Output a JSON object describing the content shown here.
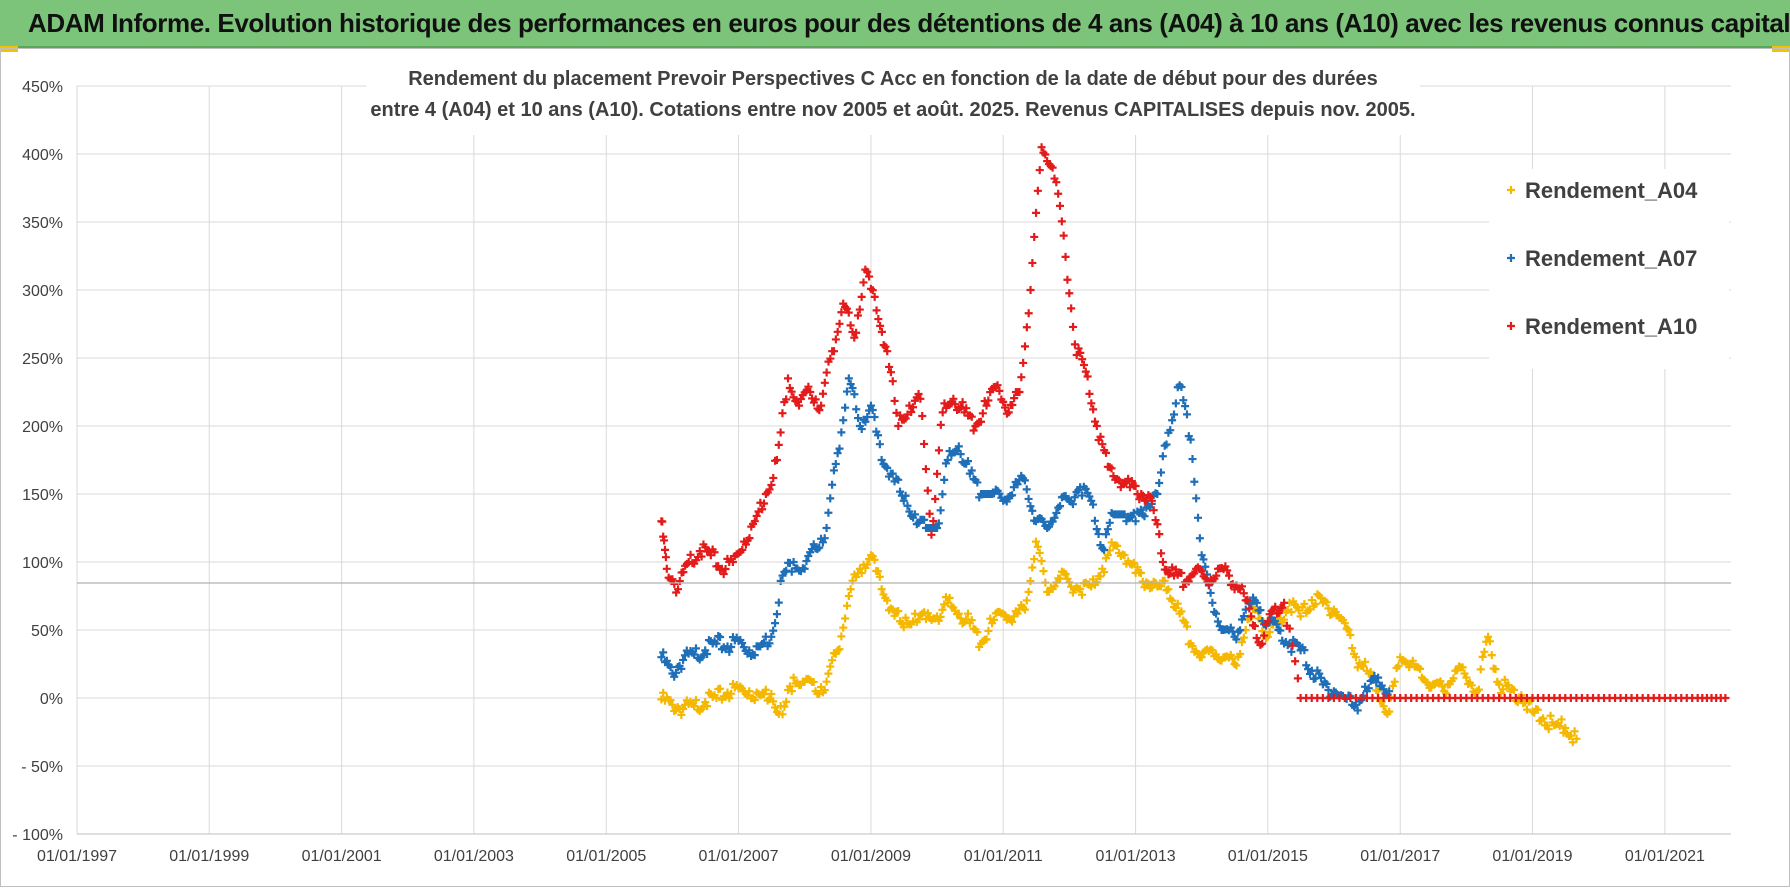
{
  "banner": {
    "title": "ADAM Informe. Evolution historique des performances en euros pour des détentions de 4 ans (A04) à 10 ans (A10) avec les revenus connus capitalisés"
  },
  "chart_data": {
    "type": "scatter",
    "title_line1": "Rendement du placement Prevoir Perspectives C Acc en fonction de la date de début pour des durées",
    "title_line2": "entre 4 (A04) et 10 ans (A10). Cotations entre nov 2005 et août. 2025. Revenus CAPITALISES depuis nov. 2005.",
    "x_type": "date",
    "xlim": [
      "1997-01-01",
      "2022-01-01"
    ],
    "x_ticks": [
      "1997-01-01",
      "1999-01-01",
      "2001-01-01",
      "2003-01-01",
      "2005-01-01",
      "2007-01-01",
      "2009-01-01",
      "2011-01-01",
      "2013-01-01",
      "2015-01-01",
      "2017-01-01",
      "2019-01-01",
      "2021-01-01"
    ],
    "x_tick_labels": [
      "01/01/1997",
      "01/01/1999",
      "01/01/2001",
      "01/01/2003",
      "01/01/2005",
      "01/01/2007",
      "01/01/2009",
      "01/01/2011",
      "01/01/2013",
      "01/01/2015",
      "01/01/2017",
      "01/01/2019",
      "01/01/2021"
    ],
    "ylim": [
      -100,
      450
    ],
    "y_ticks": [
      -100,
      -50,
      0,
      50,
      100,
      150,
      200,
      250,
      300,
      350,
      400,
      450
    ],
    "y_tick_labels": [
      "- 100%",
      "- 50%",
      "0%",
      "50%",
      "100%",
      "150%",
      "200%",
      "250%",
      "300%",
      "350%",
      "400%",
      "450%"
    ],
    "y_unit": "%",
    "grid": true,
    "legend_position": "top-right",
    "marker": "+",
    "series": [
      {
        "name": "Rendement_A04",
        "color": "#f5b800",
        "points": [
          [
            "2005-11-01",
            -1
          ],
          [
            "2006-01-01",
            -5
          ],
          [
            "2006-03-01",
            -8
          ],
          [
            "2006-05-01",
            -6
          ],
          [
            "2006-07-01",
            -3
          ],
          [
            "2006-09-01",
            0
          ],
          [
            "2006-11-01",
            4
          ],
          [
            "2007-01-01",
            7
          ],
          [
            "2007-03-01",
            5
          ],
          [
            "2007-05-01",
            2
          ],
          [
            "2007-07-01",
            3
          ],
          [
            "2007-09-01",
            -12
          ],
          [
            "2007-11-01",
            15
          ],
          [
            "2008-01-01",
            12
          ],
          [
            "2008-03-01",
            5
          ],
          [
            "2008-05-01",
            12
          ],
          [
            "2008-07-01",
            35
          ],
          [
            "2008-09-01",
            75
          ],
          [
            "2008-11-01",
            95
          ],
          [
            "2009-01-01",
            105
          ],
          [
            "2009-03-01",
            80
          ],
          [
            "2009-05-01",
            65
          ],
          [
            "2009-07-01",
            52
          ],
          [
            "2009-09-01",
            62
          ],
          [
            "2009-11-01",
            58
          ],
          [
            "2010-01-01",
            60
          ],
          [
            "2010-03-01",
            70
          ],
          [
            "2010-05-01",
            62
          ],
          [
            "2010-07-01",
            55
          ],
          [
            "2010-09-01",
            40
          ],
          [
            "2010-11-01",
            55
          ],
          [
            "2011-01-01",
            62
          ],
          [
            "2011-03-01",
            60
          ],
          [
            "2011-05-01",
            65
          ],
          [
            "2011-07-01",
            115
          ],
          [
            "2011-09-01",
            78
          ],
          [
            "2011-11-01",
            88
          ],
          [
            "2012-01-01",
            85
          ],
          [
            "2012-03-01",
            80
          ],
          [
            "2012-05-01",
            82
          ],
          [
            "2012-07-01",
            95
          ],
          [
            "2012-09-01",
            112
          ],
          [
            "2012-11-01",
            105
          ],
          [
            "2013-01-01",
            92
          ],
          [
            "2013-03-01",
            85
          ],
          [
            "2013-05-01",
            82
          ],
          [
            "2013-07-01",
            80
          ],
          [
            "2013-09-01",
            62
          ],
          [
            "2013-11-01",
            40
          ],
          [
            "2014-01-01",
            30
          ],
          [
            "2014-03-01",
            35
          ],
          [
            "2014-05-01",
            30
          ],
          [
            "2014-07-01",
            25
          ],
          [
            "2014-09-01",
            50
          ],
          [
            "2014-11-01",
            65
          ],
          [
            "2015-01-01",
            45
          ],
          [
            "2015-03-01",
            55
          ],
          [
            "2015-05-01",
            70
          ],
          [
            "2015-07-01",
            60
          ],
          [
            "2015-09-01",
            72
          ],
          [
            "2015-11-01",
            70
          ],
          [
            "2016-01-01",
            65
          ],
          [
            "2016-03-01",
            55
          ],
          [
            "2016-05-01",
            30
          ],
          [
            "2016-07-01",
            20
          ],
          [
            "2016-09-01",
            5
          ],
          [
            "2016-11-01",
            -10
          ],
          [
            "2017-01-01",
            30
          ],
          [
            "2017-03-01",
            25
          ],
          [
            "2017-05-01",
            15
          ],
          [
            "2017-07-01",
            10
          ],
          [
            "2017-09-01",
            5
          ],
          [
            "2017-11-01",
            20
          ],
          [
            "2018-01-01",
            15
          ],
          [
            "2018-03-01",
            5
          ],
          [
            "2018-05-01",
            45
          ],
          [
            "2018-07-01",
            10
          ],
          [
            "2018-09-01",
            5
          ],
          [
            "2018-11-01",
            2
          ],
          [
            "2019-01-01",
            -10
          ],
          [
            "2019-03-01",
            -15
          ],
          [
            "2019-05-01",
            -20
          ],
          [
            "2019-07-01",
            -22
          ],
          [
            "2019-09-01",
            -30
          ]
        ]
      },
      {
        "name": "Rendement_A07",
        "color": "#1f6fb8",
        "points": [
          [
            "2005-11-01",
            30
          ],
          [
            "2006-01-01",
            18
          ],
          [
            "2006-03-01",
            28
          ],
          [
            "2006-05-01",
            32
          ],
          [
            "2006-07-01",
            35
          ],
          [
            "2006-09-01",
            40
          ],
          [
            "2006-11-01",
            38
          ],
          [
            "2007-01-01",
            42
          ],
          [
            "2007-03-01",
            35
          ],
          [
            "2007-05-01",
            38
          ],
          [
            "2007-07-01",
            45
          ],
          [
            "2007-09-01",
            90
          ],
          [
            "2007-11-01",
            100
          ],
          [
            "2008-01-01",
            95
          ],
          [
            "2008-03-01",
            110
          ],
          [
            "2008-05-01",
            125
          ],
          [
            "2008-07-01",
            180
          ],
          [
            "2008-09-01",
            235
          ],
          [
            "2008-11-01",
            200
          ],
          [
            "2009-01-01",
            215
          ],
          [
            "2009-03-01",
            175
          ],
          [
            "2009-05-01",
            165
          ],
          [
            "2009-07-01",
            145
          ],
          [
            "2009-09-01",
            135
          ],
          [
            "2009-11-01",
            125
          ],
          [
            "2010-01-01",
            125
          ],
          [
            "2010-03-01",
            175
          ],
          [
            "2010-05-01",
            185
          ],
          [
            "2010-07-01",
            165
          ],
          [
            "2010-09-01",
            150
          ],
          [
            "2010-11-01",
            150
          ],
          [
            "2011-01-01",
            145
          ],
          [
            "2011-03-01",
            155
          ],
          [
            "2011-05-01",
            160
          ],
          [
            "2011-07-01",
            130
          ],
          [
            "2011-09-01",
            125
          ],
          [
            "2011-11-01",
            140
          ],
          [
            "2012-01-01",
            145
          ],
          [
            "2012-03-01",
            155
          ],
          [
            "2012-05-01",
            145
          ],
          [
            "2012-07-01",
            110
          ],
          [
            "2012-09-01",
            135
          ],
          [
            "2012-11-01",
            135
          ],
          [
            "2013-01-01",
            130
          ],
          [
            "2013-03-01",
            140
          ],
          [
            "2013-05-01",
            150
          ],
          [
            "2013-07-01",
            195
          ],
          [
            "2013-09-01",
            230
          ],
          [
            "2013-11-01",
            190
          ],
          [
            "2014-01-01",
            105
          ],
          [
            "2014-03-01",
            70
          ],
          [
            "2014-05-01",
            50
          ],
          [
            "2014-07-01",
            45
          ],
          [
            "2014-09-01",
            65
          ],
          [
            "2014-11-01",
            70
          ],
          [
            "2015-01-01",
            55
          ],
          [
            "2015-03-01",
            50
          ],
          [
            "2015-05-01",
            40
          ],
          [
            "2015-07-01",
            35
          ],
          [
            "2015-09-01",
            20
          ],
          [
            "2015-11-01",
            10
          ],
          [
            "2016-01-01",
            5
          ],
          [
            "2016-03-01",
            0
          ],
          [
            "2016-05-01",
            -5
          ],
          [
            "2016-07-01",
            5
          ],
          [
            "2016-09-01",
            15
          ],
          [
            "2016-11-01",
            5
          ]
        ]
      },
      {
        "name": "Rendement_A10",
        "color": "#e31b1b",
        "points": [
          [
            "2005-11-01",
            130
          ],
          [
            "2005-12-01",
            95
          ],
          [
            "2006-02-01",
            80
          ],
          [
            "2006-04-01",
            100
          ],
          [
            "2006-06-01",
            108
          ],
          [
            "2006-08-01",
            105
          ],
          [
            "2006-10-01",
            95
          ],
          [
            "2006-12-01",
            100
          ],
          [
            "2007-02-01",
            115
          ],
          [
            "2007-04-01",
            130
          ],
          [
            "2007-06-01",
            150
          ],
          [
            "2007-08-01",
            175
          ],
          [
            "2007-10-01",
            235
          ],
          [
            "2007-12-01",
            215
          ],
          [
            "2008-02-01",
            225
          ],
          [
            "2008-04-01",
            215
          ],
          [
            "2008-06-01",
            255
          ],
          [
            "2008-08-01",
            290
          ],
          [
            "2008-10-01",
            265
          ],
          [
            "2008-12-01",
            315
          ],
          [
            "2009-02-01",
            285
          ],
          [
            "2009-04-01",
            255
          ],
          [
            "2009-06-01",
            200
          ],
          [
            "2009-08-01",
            215
          ],
          [
            "2009-10-01",
            220
          ],
          [
            "2009-12-01",
            120
          ],
          [
            "2010-02-01",
            210
          ],
          [
            "2010-04-01",
            220
          ],
          [
            "2010-06-01",
            210
          ],
          [
            "2010-08-01",
            200
          ],
          [
            "2010-10-01",
            215
          ],
          [
            "2010-12-01",
            230
          ],
          [
            "2011-02-01",
            210
          ],
          [
            "2011-04-01",
            225
          ],
          [
            "2011-06-01",
            300
          ],
          [
            "2011-08-01",
            405
          ],
          [
            "2011-10-01",
            390
          ],
          [
            "2011-12-01",
            340
          ],
          [
            "2012-02-01",
            260
          ],
          [
            "2012-04-01",
            240
          ],
          [
            "2012-06-01",
            200
          ],
          [
            "2012-08-01",
            170
          ],
          [
            "2012-10-01",
            160
          ],
          [
            "2012-12-01",
            155
          ],
          [
            "2013-02-01",
            150
          ],
          [
            "2013-04-01",
            145
          ],
          [
            "2013-06-01",
            100
          ],
          [
            "2013-08-01",
            90
          ],
          [
            "2013-10-01",
            85
          ],
          [
            "2013-12-01",
            95
          ],
          [
            "2014-02-01",
            85
          ],
          [
            "2014-04-01",
            95
          ],
          [
            "2014-06-01",
            90
          ],
          [
            "2014-08-01",
            80
          ],
          [
            "2014-10-01",
            60
          ],
          [
            "2014-12-01",
            40
          ],
          [
            "2015-02-01",
            65
          ],
          [
            "2015-04-01",
            70
          ],
          [
            "2015-07-01",
            0
          ],
          [
            "2016-01-01",
            0
          ],
          [
            "2016-07-01",
            0
          ],
          [
            "2017-01-01",
            0
          ],
          [
            "2017-07-01",
            0
          ],
          [
            "2018-01-01",
            0
          ],
          [
            "2018-07-01",
            0
          ],
          [
            "2019-01-01",
            0
          ],
          [
            "2019-07-01",
            0
          ],
          [
            "2020-01-01",
            0
          ],
          [
            "2020-07-01",
            0
          ],
          [
            "2021-01-01",
            0
          ],
          [
            "2021-07-01",
            0
          ],
          [
            "2021-12-01",
            0
          ]
        ]
      }
    ]
  }
}
